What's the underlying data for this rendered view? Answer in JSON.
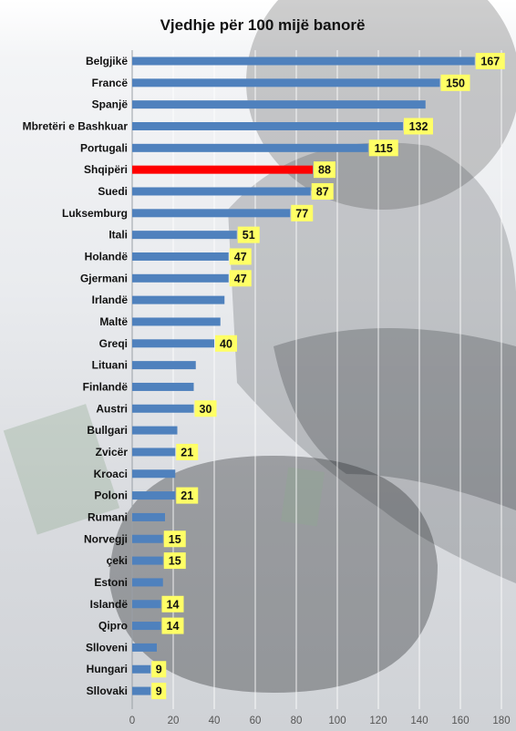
{
  "chart_data": {
    "type": "bar",
    "orientation": "horizontal",
    "title": "Vjedhje për 100 mijë banorë",
    "xlabel": "",
    "ylabel": "",
    "xlim": [
      0,
      180
    ],
    "x_ticks": [
      0,
      20,
      40,
      60,
      80,
      100,
      120,
      140,
      160,
      180
    ],
    "grid": "vertical",
    "legend": "none",
    "colors": {
      "bar": "#4f81bd",
      "highlight": "#ff0000",
      "label_bg": "#ffff66"
    },
    "highlight_category": "Shqipëri",
    "categories": [
      "Belgjikë",
      "Francë",
      "Spanjë",
      "Mbretëri e Bashkuar",
      "Portugali",
      "Shqipëri",
      "Suedi",
      "Luksemburg",
      "Itali",
      "Holandë",
      "Gjermani",
      "Irlandë",
      "Maltë",
      "Greqi",
      "Lituani",
      "Finlandë",
      "Austri",
      "Bullgari",
      "Zvicër",
      "Kroaci",
      "Poloni",
      "Rumani",
      "Norvegji",
      "çeki",
      "Estoni",
      "Islandë",
      "Qipro",
      "Slloveni",
      "Hungari",
      "Sllovaki"
    ],
    "values": [
      167,
      150,
      143,
      132,
      115,
      88,
      87,
      77,
      51,
      47,
      47,
      45,
      43,
      40,
      31,
      30,
      30,
      22,
      21,
      21,
      21,
      16,
      15,
      15,
      15,
      14,
      14,
      12,
      9,
      9
    ],
    "data_labels": [
      "167",
      "150",
      "",
      "132",
      "115",
      "88",
      "87",
      "77",
      "51",
      "47",
      "47",
      "",
      "",
      "40",
      "",
      "",
      "30",
      "",
      "21",
      "",
      "21",
      "",
      "15",
      "15",
      "",
      "14",
      "14",
      "",
      "9",
      "9"
    ]
  }
}
